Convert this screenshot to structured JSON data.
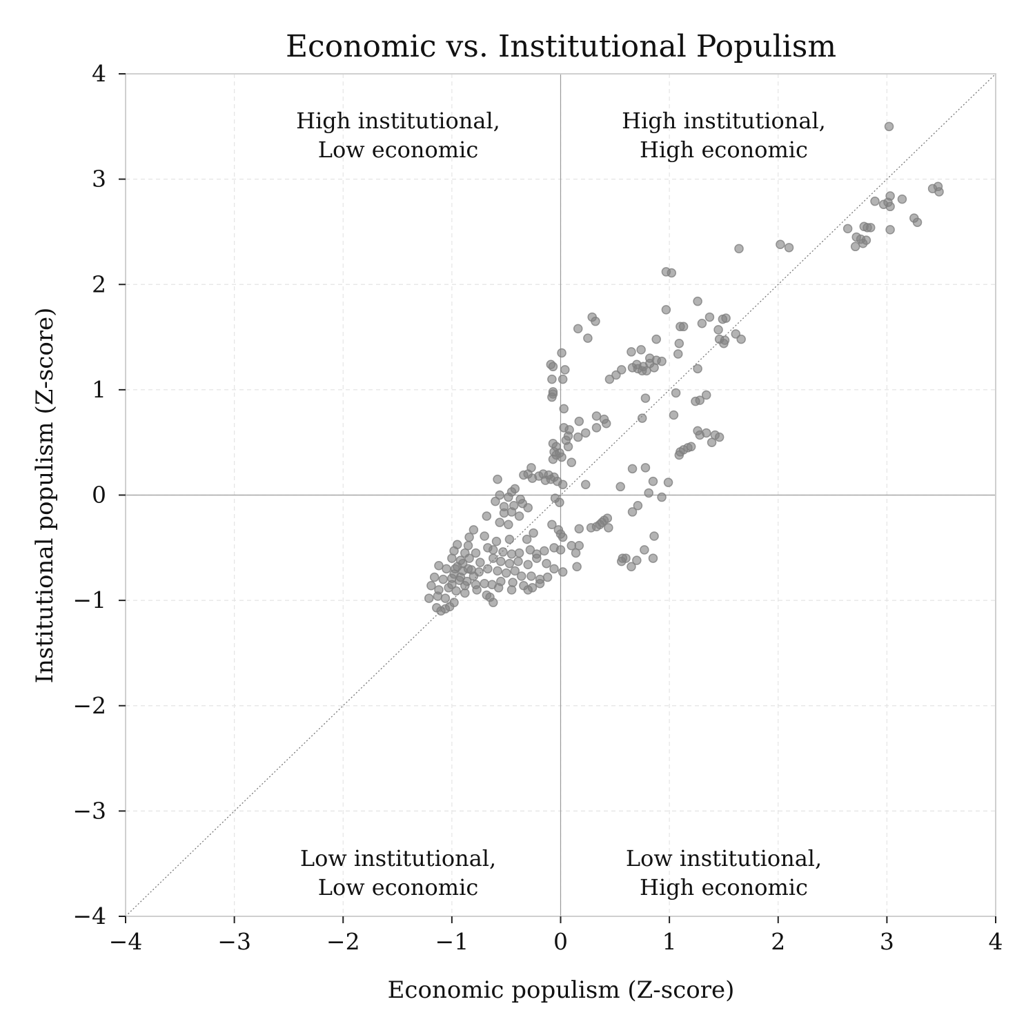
{
  "chart_data": {
    "type": "scatter",
    "title": "Economic vs. Institutional Populism",
    "xlabel": "Economic populism (Z-score)",
    "ylabel": "Institutional populism (Z-score)",
    "xlim": [
      -4,
      4
    ],
    "ylim": [
      -4,
      4
    ],
    "x_ticks": [
      -4,
      -3,
      -2,
      -1,
      0,
      1,
      2,
      3,
      4
    ],
    "y_ticks": [
      -4,
      -3,
      -2,
      -1,
      0,
      1,
      2,
      3,
      4
    ],
    "x_tick_labels": [
      "−4",
      "−3",
      "−2",
      "−1",
      "0",
      "1",
      "2",
      "3",
      "4"
    ],
    "y_tick_labels": [
      "−4",
      "−3",
      "−2",
      "−1",
      "0",
      "1",
      "2",
      "3",
      "4"
    ],
    "grid": true,
    "reference_lines": [
      "x = 0",
      "y = 0",
      "y = x (dotted diagonal)"
    ],
    "point_color": "#808080",
    "quadrant_labels": {
      "top_left": [
        "High institutional,",
        "Low economic"
      ],
      "top_right": [
        "High institutional,",
        "High economic"
      ],
      "bottom_left": [
        "Low institutional,",
        "Low economic"
      ],
      "bottom_right": [
        "Low institutional,",
        "High economic"
      ]
    },
    "points": [
      [
        3.02,
        3.5
      ],
      [
        3.47,
        2.93
      ],
      [
        3.42,
        2.91
      ],
      [
        3.48,
        2.88
      ],
      [
        3.03,
        2.84
      ],
      [
        3.14,
        2.81
      ],
      [
        3.01,
        2.78
      ],
      [
        2.97,
        2.76
      ],
      [
        3.03,
        2.74
      ],
      [
        2.89,
        2.79
      ],
      [
        3.25,
        2.63
      ],
      [
        3.28,
        2.59
      ],
      [
        2.64,
        2.53
      ],
      [
        2.82,
        2.54
      ],
      [
        2.79,
        2.55
      ],
      [
        2.85,
        2.54
      ],
      [
        3.03,
        2.52
      ],
      [
        2.72,
        2.45
      ],
      [
        2.76,
        2.43
      ],
      [
        2.81,
        2.42
      ],
      [
        2.78,
        2.39
      ],
      [
        2.71,
        2.36
      ],
      [
        2.02,
        2.38
      ],
      [
        2.1,
        2.35
      ],
      [
        1.64,
        2.34
      ],
      [
        0.97,
        2.12
      ],
      [
        1.02,
        2.11
      ],
      [
        1.26,
        1.84
      ],
      [
        0.97,
        1.76
      ],
      [
        1.37,
        1.69
      ],
      [
        1.49,
        1.67
      ],
      [
        1.52,
        1.68
      ],
      [
        1.3,
        1.63
      ],
      [
        1.1,
        1.6
      ],
      [
        1.13,
        1.6
      ],
      [
        1.45,
        1.57
      ],
      [
        1.61,
        1.53
      ],
      [
        1.66,
        1.48
      ],
      [
        1.46,
        1.48
      ],
      [
        1.51,
        1.47
      ],
      [
        1.5,
        1.44
      ],
      [
        1.09,
        1.44
      ],
      [
        0.29,
        1.69
      ],
      [
        0.32,
        1.65
      ],
      [
        0.16,
        1.58
      ],
      [
        0.25,
        1.49
      ],
      [
        0.88,
        1.48
      ],
      [
        0.65,
        1.36
      ],
      [
        0.74,
        1.38
      ],
      [
        1.08,
        1.34
      ],
      [
        0.82,
        1.3
      ],
      [
        0.88,
        1.28
      ],
      [
        0.93,
        1.27
      ],
      [
        0.82,
        1.25
      ],
      [
        0.7,
        1.24
      ],
      [
        0.76,
        1.22
      ],
      [
        0.66,
        1.21
      ],
      [
        0.71,
        1.2
      ],
      [
        0.79,
        1.18
      ],
      [
        0.86,
        1.21
      ],
      [
        0.75,
        1.18
      ],
      [
        1.26,
        1.2
      ],
      [
        0.56,
        1.19
      ],
      [
        0.51,
        1.14
      ],
      [
        0.45,
        1.1
      ],
      [
        -0.09,
        1.24
      ],
      [
        -0.07,
        1.22
      ],
      [
        0.01,
        1.35
      ],
      [
        0.04,
        1.19
      ],
      [
        0.02,
        1.1
      ],
      [
        -0.08,
        1.1
      ],
      [
        -0.07,
        0.98
      ],
      [
        -0.07,
        0.96
      ],
      [
        -0.08,
        0.93
      ],
      [
        1.06,
        0.97
      ],
      [
        0.78,
        0.92
      ],
      [
        1.34,
        0.95
      ],
      [
        1.28,
        0.9
      ],
      [
        1.24,
        0.89
      ],
      [
        0.03,
        0.82
      ],
      [
        0.33,
        0.75
      ],
      [
        0.4,
        0.72
      ],
      [
        0.42,
        0.68
      ],
      [
        0.17,
        0.7
      ],
      [
        1.04,
        0.76
      ],
      [
        0.75,
        0.73
      ],
      [
        0.08,
        0.62
      ],
      [
        0.03,
        0.64
      ],
      [
        0.33,
        0.64
      ],
      [
        0.23,
        0.59
      ],
      [
        0.07,
        0.56
      ],
      [
        0.16,
        0.55
      ],
      [
        0.05,
        0.52
      ],
      [
        1.26,
        0.61
      ],
      [
        1.28,
        0.57
      ],
      [
        1.34,
        0.59
      ],
      [
        1.42,
        0.57
      ],
      [
        1.46,
        0.55
      ],
      [
        1.39,
        0.5
      ],
      [
        1.2,
        0.46
      ],
      [
        1.17,
        0.45
      ],
      [
        1.13,
        0.43
      ],
      [
        1.1,
        0.41
      ],
      [
        1.09,
        0.38
      ],
      [
        -0.07,
        0.49
      ],
      [
        -0.04,
        0.46
      ],
      [
        0.07,
        0.46
      ],
      [
        -0.06,
        0.41
      ],
      [
        -0.04,
        0.38
      ],
      [
        -0.01,
        0.4
      ],
      [
        0.01,
        0.36
      ],
      [
        -0.07,
        0.34
      ],
      [
        0.1,
        0.31
      ],
      [
        0.66,
        0.25
      ],
      [
        0.78,
        0.26
      ],
      [
        -0.27,
        0.26
      ],
      [
        -0.16,
        0.2
      ],
      [
        -0.2,
        0.18
      ],
      [
        -0.3,
        0.2
      ],
      [
        -0.34,
        0.19
      ],
      [
        -0.26,
        0.16
      ],
      [
        -0.14,
        0.14
      ],
      [
        -0.09,
        0.15
      ],
      [
        -0.11,
        0.19
      ],
      [
        -0.06,
        0.17
      ],
      [
        -0.03,
        0.13
      ],
      [
        0.02,
        0.1
      ],
      [
        0.23,
        0.1
      ],
      [
        0.55,
        0.08
      ],
      [
        0.85,
        0.13
      ],
      [
        0.99,
        0.12
      ],
      [
        0.81,
        0.02
      ],
      [
        0.93,
        -0.02
      ],
      [
        -0.58,
        0.15
      ],
      [
        -0.42,
        0.06
      ],
      [
        -0.45,
        0.03
      ],
      [
        -0.56,
        0.0
      ],
      [
        -0.48,
        -0.02
      ],
      [
        -0.6,
        -0.06
      ],
      [
        -0.37,
        -0.04
      ],
      [
        -0.35,
        -0.08
      ],
      [
        -0.43,
        -0.1
      ],
      [
        -0.52,
        -0.11
      ],
      [
        -0.3,
        -0.12
      ],
      [
        -0.45,
        -0.16
      ],
      [
        -0.52,
        -0.17
      ],
      [
        -0.38,
        -0.2
      ],
      [
        -0.68,
        -0.2
      ],
      [
        -0.56,
        -0.26
      ],
      [
        -0.48,
        -0.28
      ],
      [
        -0.8,
        -0.33
      ],
      [
        -0.05,
        -0.03
      ],
      [
        -0.01,
        -0.07
      ],
      [
        0.71,
        -0.1
      ],
      [
        0.66,
        -0.16
      ],
      [
        0.43,
        -0.22
      ],
      [
        0.4,
        -0.24
      ],
      [
        0.38,
        -0.26
      ],
      [
        0.36,
        -0.28
      ],
      [
        0.33,
        -0.3
      ],
      [
        0.28,
        -0.31
      ],
      [
        0.17,
        -0.32
      ],
      [
        0.44,
        -0.31
      ],
      [
        -0.08,
        -0.28
      ],
      [
        -0.02,
        -0.33
      ],
      [
        0.0,
        -0.37
      ],
      [
        0.02,
        -0.4
      ],
      [
        -0.25,
        -0.36
      ],
      [
        -0.31,
        -0.42
      ],
      [
        -0.47,
        -0.42
      ],
      [
        -0.59,
        -0.44
      ],
      [
        -0.7,
        -0.39
      ],
      [
        -0.84,
        -0.4
      ],
      [
        -0.85,
        -0.48
      ],
      [
        -0.95,
        -0.47
      ],
      [
        -0.98,
        -0.53
      ],
      [
        -0.88,
        -0.55
      ],
      [
        -0.78,
        -0.55
      ],
      [
        -0.67,
        -0.5
      ],
      [
        -0.62,
        -0.52
      ],
      [
        -0.53,
        -0.54
      ],
      [
        -0.45,
        -0.56
      ],
      [
        -0.38,
        -0.55
      ],
      [
        -0.28,
        -0.52
      ],
      [
        -0.22,
        -0.56
      ],
      [
        -0.15,
        -0.53
      ],
      [
        -0.06,
        -0.5
      ],
      [
        0.0,
        -0.52
      ],
      [
        0.1,
        -0.48
      ],
      [
        0.17,
        -0.48
      ],
      [
        0.14,
        -0.55
      ],
      [
        0.77,
        -0.52
      ],
      [
        0.57,
        -0.6
      ],
      [
        0.6,
        -0.6
      ],
      [
        0.7,
        -0.62
      ],
      [
        0.85,
        -0.6
      ],
      [
        0.56,
        -0.63
      ],
      [
        0.65,
        -0.68
      ],
      [
        0.86,
        -0.39
      ],
      [
        -1.0,
        -0.6
      ],
      [
        -0.92,
        -0.62
      ],
      [
        -0.84,
        -0.6
      ],
      [
        -0.74,
        -0.64
      ],
      [
        -0.62,
        -0.6
      ],
      [
        -0.55,
        -0.63
      ],
      [
        -0.47,
        -0.65
      ],
      [
        -0.39,
        -0.63
      ],
      [
        -0.3,
        -0.66
      ],
      [
        -0.22,
        -0.6
      ],
      [
        -0.13,
        -0.65
      ],
      [
        -0.06,
        -0.7
      ],
      [
        0.02,
        -0.73
      ],
      [
        0.15,
        -0.68
      ],
      [
        -1.12,
        -0.67
      ],
      [
        -1.05,
        -0.7
      ],
      [
        -0.97,
        -0.7
      ],
      [
        -0.9,
        -0.72
      ],
      [
        -0.82,
        -0.71
      ],
      [
        -0.75,
        -0.73
      ],
      [
        -0.67,
        -0.7
      ],
      [
        -0.58,
        -0.72
      ],
      [
        -0.5,
        -0.74
      ],
      [
        -0.42,
        -0.72
      ],
      [
        -0.36,
        -0.77
      ],
      [
        -0.27,
        -0.77
      ],
      [
        -0.19,
        -0.8
      ],
      [
        -0.12,
        -0.78
      ],
      [
        -1.16,
        -0.78
      ],
      [
        -1.08,
        -0.8
      ],
      [
        -1.0,
        -0.79
      ],
      [
        -0.93,
        -0.81
      ],
      [
        -0.86,
        -0.82
      ],
      [
        -0.78,
        -0.85
      ],
      [
        -0.7,
        -0.84
      ],
      [
        -0.63,
        -0.85
      ],
      [
        -0.55,
        -0.82
      ],
      [
        -0.44,
        -0.83
      ],
      [
        -0.34,
        -0.86
      ],
      [
        -0.26,
        -0.88
      ],
      [
        -0.19,
        -0.84
      ],
      [
        -1.19,
        -0.86
      ],
      [
        -1.12,
        -0.9
      ],
      [
        -1.03,
        -0.88
      ],
      [
        -0.96,
        -0.91
      ],
      [
        -0.88,
        -0.93
      ],
      [
        -0.77,
        -0.9
      ],
      [
        -0.68,
        -0.95
      ],
      [
        -0.57,
        -0.88
      ],
      [
        -0.45,
        -0.9
      ],
      [
        -0.3,
        -0.9
      ],
      [
        -1.21,
        -0.98
      ],
      [
        -1.13,
        -0.96
      ],
      [
        -1.06,
        -0.98
      ],
      [
        -0.98,
        -1.02
      ],
      [
        -1.1,
        -1.1
      ],
      [
        -1.06,
        -1.08
      ],
      [
        -1.02,
        -1.06
      ],
      [
        -0.62,
        -1.02
      ],
      [
        -0.65,
        -0.97
      ],
      [
        -1.14,
        -1.07
      ],
      [
        -0.98,
        -0.75
      ],
      [
        -0.9,
        -0.65
      ],
      [
        -0.85,
        -0.7
      ],
      [
        -0.8,
        -0.77
      ],
      [
        -1.0,
        -0.85
      ],
      [
        -0.95,
        -0.68
      ],
      [
        -0.92,
        -0.78
      ],
      [
        -0.88,
        -0.86
      ]
    ]
  }
}
